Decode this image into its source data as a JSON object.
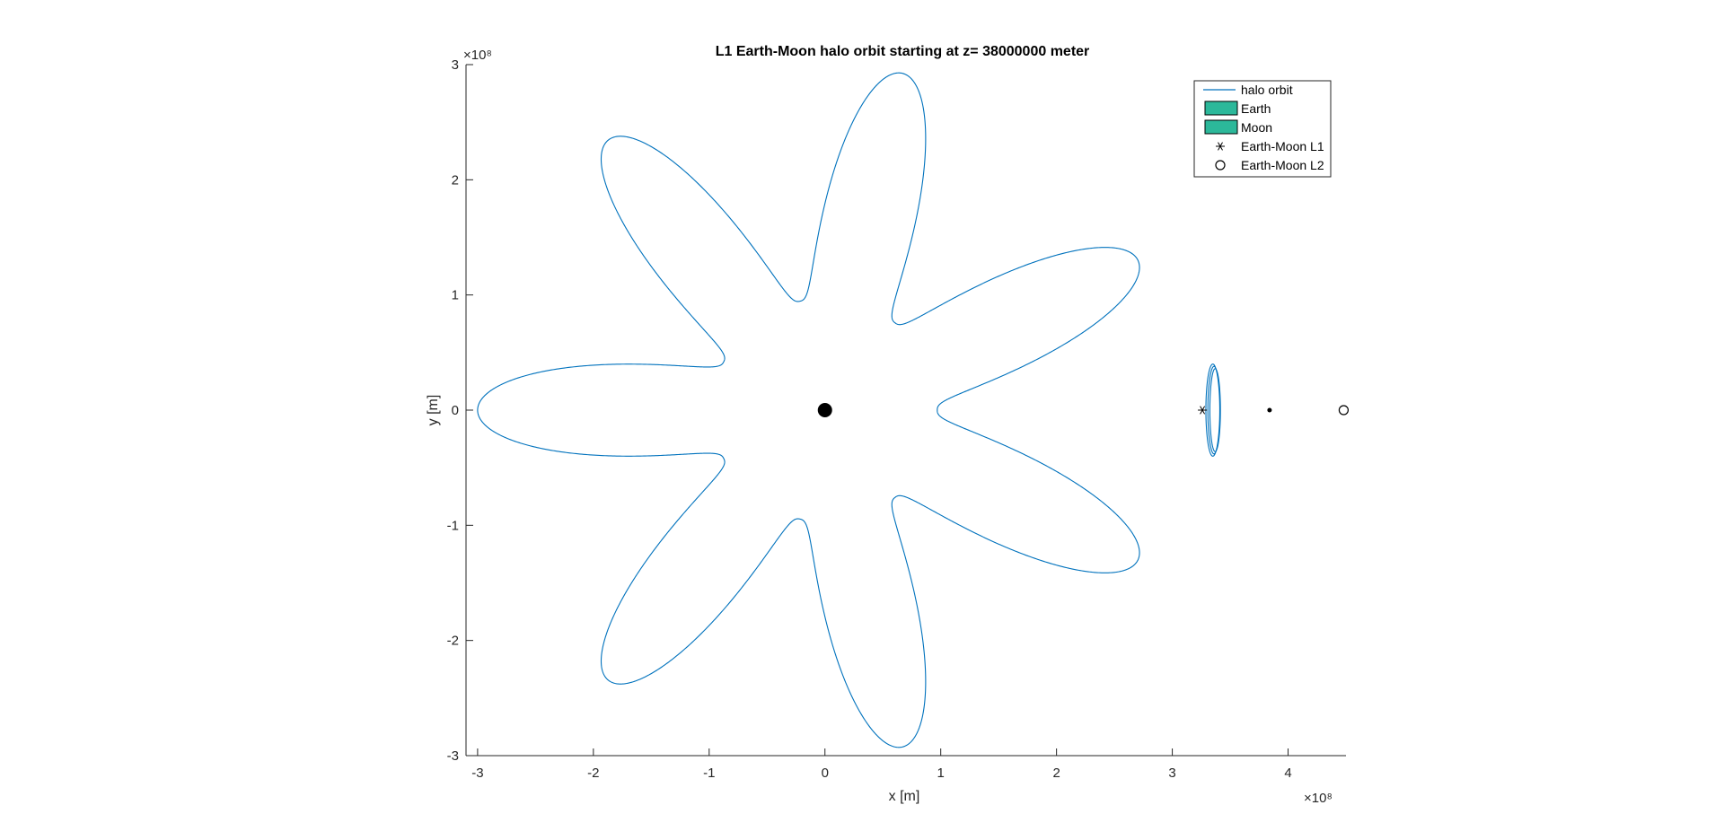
{
  "chart_data": {
    "type": "line",
    "title": "L1 Earth-Moon halo orbit starting at z= 38000000 meter",
    "xlabel": "x [m]",
    "ylabel": "y [m]",
    "x_exponent": "×10⁸",
    "y_exponent": "×10⁸",
    "xlim": [
      -3.1,
      4.5
    ],
    "ylim": [
      -3.0,
      3.0
    ],
    "xticks": [
      -3,
      -2,
      -1,
      0,
      1,
      2,
      3,
      4
    ],
    "xtick_labels": [
      "-3",
      "-2",
      "-1",
      "0",
      "1",
      "2",
      "3",
      "4"
    ],
    "yticks": [
      -3,
      -2,
      -1,
      0,
      1,
      2,
      3
    ],
    "ytick_labels": [
      "-3",
      "-2",
      "-1",
      "0",
      "1",
      "2",
      "3"
    ],
    "grid": false,
    "legend_position": "top-right",
    "legend": [
      {
        "label": "halo orbit",
        "kind": "line",
        "color": "#0072BD"
      },
      {
        "label": "Earth",
        "kind": "patch",
        "color": "#2CB89A"
      },
      {
        "label": "Moon",
        "kind": "patch",
        "color": "#2CB89A"
      },
      {
        "label": "Earth-Moon L1",
        "kind": "asterisk"
      },
      {
        "label": "Earth-Moon L2",
        "kind": "circle"
      }
    ],
    "series": [
      {
        "name": "halo orbit",
        "color": "#0072BD",
        "spiral": {
          "lobes": 7,
          "r_min": 0.97,
          "r_max": 3.0,
          "power": 2.6,
          "start_angle_deg": 180
        },
        "halo_loop": {
          "center_x": 3.35,
          "center_y": 0.0,
          "width": 0.12,
          "height": 0.4
        }
      }
    ],
    "points": [
      {
        "name": "Earth",
        "x": 0.0,
        "y": 0.0,
        "marker": "filled-circle-large"
      },
      {
        "name": "Moon",
        "x": 3.84,
        "y": 0.0,
        "marker": "filled-circle-small"
      },
      {
        "name": "Earth-Moon L1",
        "x": 3.26,
        "y": 0.0,
        "marker": "asterisk"
      },
      {
        "name": "Earth-Moon L2",
        "x": 4.48,
        "y": 0.0,
        "marker": "circle"
      }
    ]
  }
}
